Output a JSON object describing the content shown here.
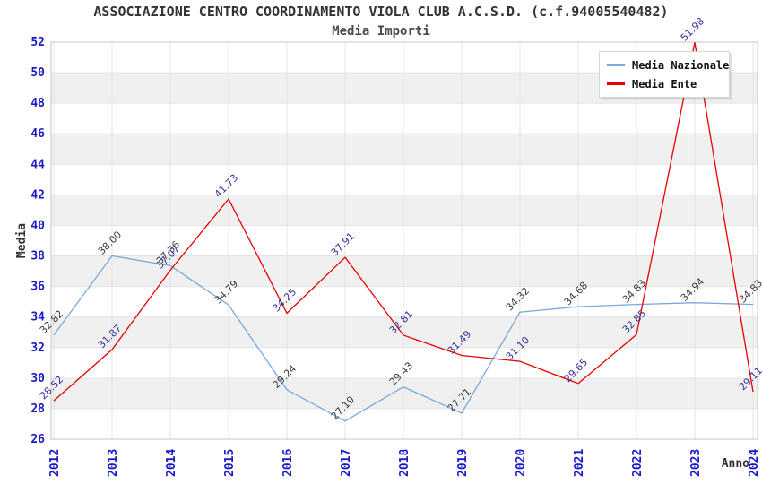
{
  "chart_data": {
    "type": "line",
    "title": "ASSOCIAZIONE CENTRO COORDINAMENTO VIOLA CLUB A.C.S.D. (c.f.94005540482)",
    "subtitle": "Media Importi",
    "xlabel": "Anno",
    "ylabel": "Media",
    "x": [
      2012,
      2013,
      2014,
      2015,
      2016,
      2017,
      2018,
      2019,
      2020,
      2021,
      2022,
      2023,
      2024
    ],
    "series": [
      {
        "name": "Media Nazionale",
        "color": "#7aa9dc",
        "label_color": "#3c3c3c",
        "values": [
          32.82,
          38.0,
          37.36,
          34.79,
          29.24,
          27.19,
          29.43,
          27.71,
          34.32,
          34.68,
          34.83,
          34.94,
          34.83
        ]
      },
      {
        "name": "Media Ente",
        "color": "#e60000",
        "label_color": "#333399",
        "values": [
          28.52,
          31.87,
          37.07,
          41.73,
          34.25,
          37.91,
          32.81,
          31.49,
          31.1,
          29.65,
          32.85,
          51.98,
          29.11
        ]
      }
    ],
    "ylim": [
      26,
      52
    ],
    "ytick_step": 2,
    "grid": true,
    "legend_position": "top-right",
    "tick_label_color": "#1a1acc",
    "stripe_color": "#f0f0f0",
    "gridline_color": "#e4e4e4",
    "plot_border_color": "#c4c4c4"
  }
}
